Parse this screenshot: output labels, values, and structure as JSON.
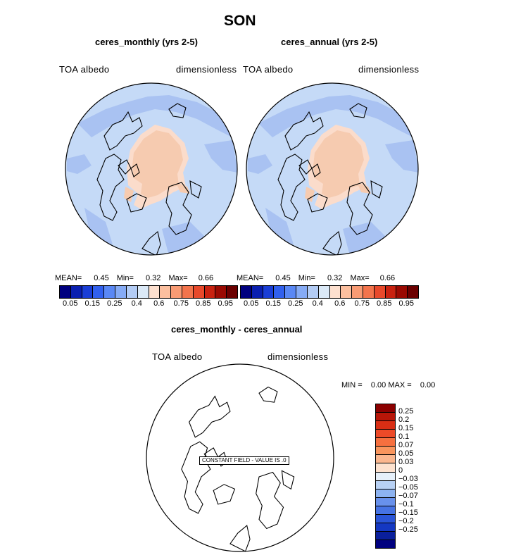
{
  "title": "SON",
  "panels": [
    {
      "subtitle": "ceres_monthly (yrs 2-5)",
      "var_label": "TOA albedo",
      "units_label": "dimensionless",
      "mean_label": "MEAN=",
      "mean": "0.45",
      "min_label": "Min=",
      "min": "0.32",
      "max_label": "Max=",
      "max": "0.66"
    },
    {
      "subtitle": "ceres_annual (yrs 2-5)",
      "var_label": "TOA albedo",
      "units_label": "dimensionless",
      "mean_label": "MEAN=",
      "mean": "0.45",
      "min_label": "Min=",
      "min": "0.32",
      "max_label": "Max=",
      "max": "0.66"
    }
  ],
  "diff": {
    "subtitle": "ceres_monthly - ceres_annual",
    "var_label": "TOA albedo",
    "units_label": "dimensionless",
    "minmax_text": "MIN =    0.00 MAX =    0.00",
    "constant_text": "CONSTANT FIELD - VALUE IS .0"
  },
  "colorbar": {
    "colors": [
      "#00007f",
      "#0a1fb0",
      "#1a3ed6",
      "#3160ee",
      "#5a88f5",
      "#86abf5",
      "#b3ccf5",
      "#dbe9f7",
      "#fde0cf",
      "#fbbf9f",
      "#f89b74",
      "#f3744c",
      "#e8492b",
      "#c82210",
      "#9a0a02",
      "#6b0000"
    ],
    "tick_labels": [
      "0.05",
      "0.15",
      "0.25",
      "0.4",
      "0.6",
      "0.75",
      "0.85",
      "0.95"
    ]
  },
  "diff_colorbar": {
    "colors": [
      "#8b0000",
      "#b81608",
      "#d82e14",
      "#ed4a28",
      "#f6703f",
      "#f9955d",
      "#fbb78f",
      "#fde2cf",
      "#e6f0fa",
      "#b8d1f4",
      "#8db3f1",
      "#6891ec",
      "#4673e4",
      "#2a55d8",
      "#1438c2",
      "#0a1f9c",
      "#00007f"
    ],
    "tick_labels": [
      "0.25",
      "0.2",
      "0.15",
      "0.1",
      "0.07",
      "0.05",
      "0.03",
      "0",
      "−0.03",
      "−0.05",
      "−0.07",
      "−0.1",
      "−0.15",
      "−0.2",
      "−0.25"
    ]
  },
  "map_colors": {
    "ocean": "#c5daf7",
    "land_blue": "#a9c2f2",
    "ice": "#f6cbb0",
    "cap_edge": "#fbdccb"
  }
}
